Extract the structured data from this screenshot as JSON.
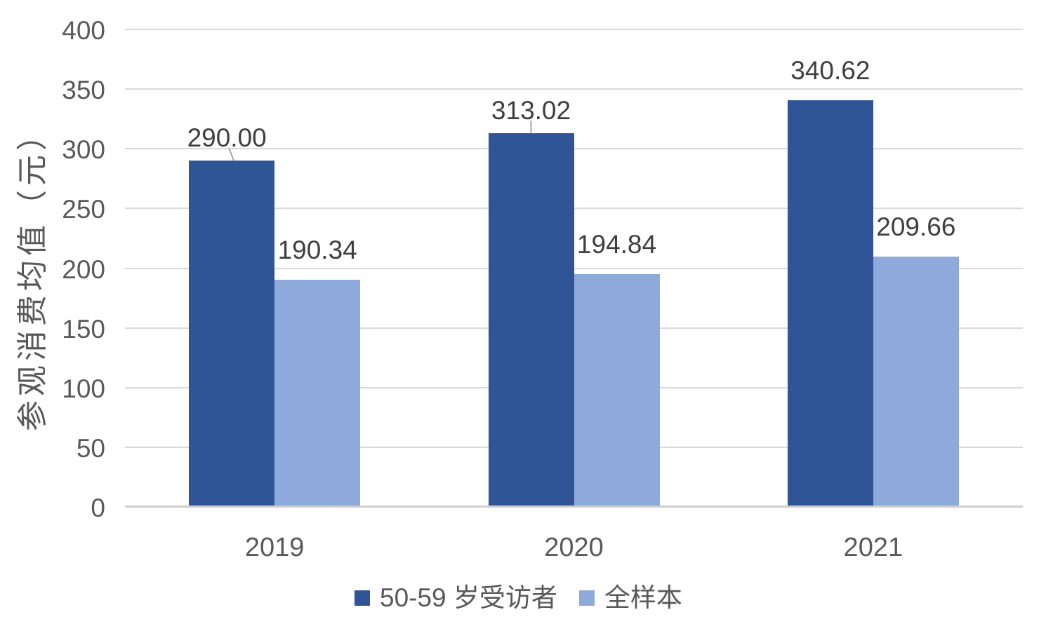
{
  "chart_data": {
    "type": "bar",
    "title": "",
    "categories": [
      "2019",
      "2020",
      "2021"
    ],
    "series": [
      {
        "name": "50-59 岁受访者",
        "color": "#2F5597",
        "values": [
          290.0,
          313.02,
          340.62
        ],
        "labels": [
          "290.00",
          "313.02",
          "340.62"
        ]
      },
      {
        "name": "全样本",
        "color": "#8EAADB",
        "values": [
          190.34,
          194.84,
          209.66
        ],
        "labels": [
          "190.34",
          "194.84",
          "209.66"
        ]
      }
    ],
    "xlabel": "",
    "ylabel": "参观消费均值（元）",
    "ylim": [
      0,
      400
    ],
    "yticks": [
      400,
      350,
      300,
      250,
      200,
      150,
      100,
      50,
      0
    ],
    "grid": "horizontal",
    "legend_position": "bottom",
    "annotations": {
      "leader_lines": [
        {
          "series": 0,
          "point": 0,
          "shape": "diagonal"
        },
        {
          "series": 0,
          "point": 1,
          "shape": "vertical"
        }
      ]
    }
  },
  "colors": {
    "background": "#FFFFFF",
    "gridline": "#D9D9D9",
    "axis_line": "#CDCDCD",
    "axis_text": "#595959",
    "data_label": "#3F3F3F",
    "leader_line": "#A6A6A6"
  }
}
